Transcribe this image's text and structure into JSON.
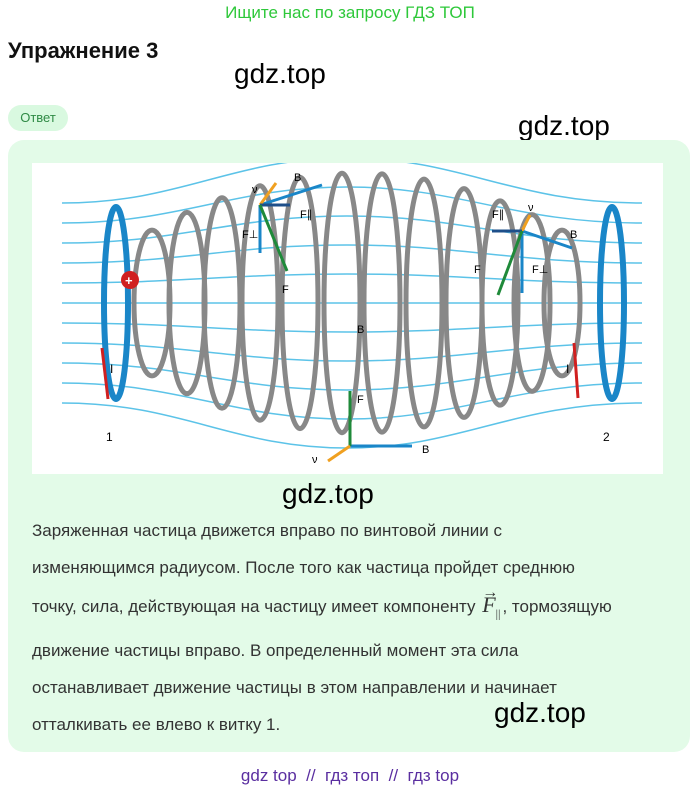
{
  "promo": "Ищите нас по запросу ГДЗ ТОП",
  "title": "Упражнение 3",
  "watermark": "gdz.top",
  "badge": "Ответ",
  "figure": {
    "labels": {
      "v": "ν",
      "B": "B",
      "F_par": "F∥",
      "F_perp": "F⊥",
      "F": "F",
      "I": "I",
      "coil1": "1",
      "coil2": "2"
    },
    "colors": {
      "field": "#5cc3e8",
      "coil": "#888888",
      "ring": "#1a86c8",
      "velocity": "#f0a020",
      "force": "#1f8a3a",
      "current": "#d02020",
      "B_vector": "#1a86c8"
    }
  },
  "answer": {
    "line1": "Заряженная частица движется вправо по винтовой линии с",
    "line2": "изменяющимся радиусом. После того как частица пройдет среднюю",
    "line3a": "точку, сила, действующая на частицу имеет компоненту",
    "vec_symbol": "F",
    "vec_arrow": "→",
    "vec_sub": "||",
    "line3b": ", тормозящую",
    "line4": "движение частицы вправо. В определенный момент эта сила",
    "line5": "останавливает движение частицы в этом направлении и начинает",
    "line6": "отталкивать ее влево к витку 1."
  },
  "footer": {
    "a": "gdz top",
    "sep": "//",
    "b": "гдз топ",
    "c": "гдз top"
  }
}
